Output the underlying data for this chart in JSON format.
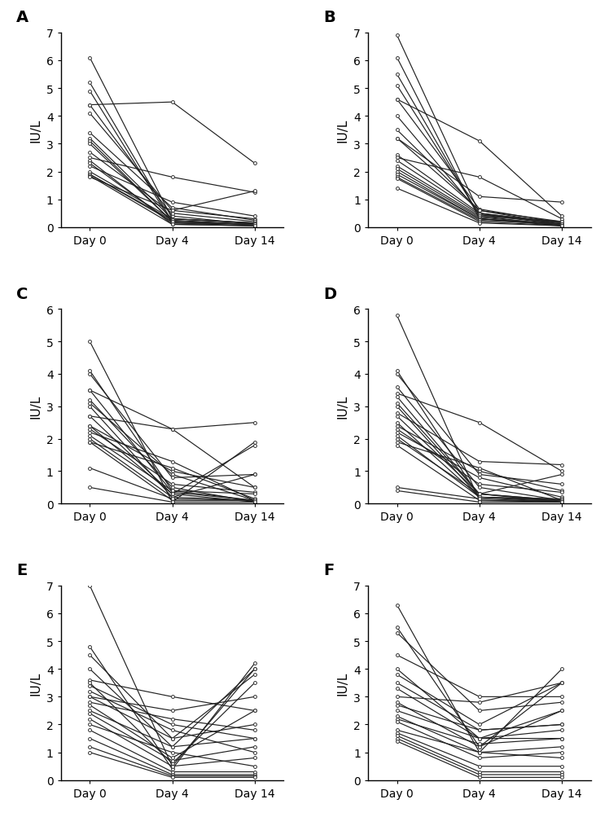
{
  "panels": [
    "A",
    "B",
    "C",
    "D",
    "E",
    "F"
  ],
  "xlabel": [
    "Day 0",
    "Day 4",
    "Day 14"
  ],
  "ylabel": "IU/L",
  "panel_A": {
    "ylim": [
      0,
      7
    ],
    "yticks": [
      0,
      1,
      2,
      3,
      4,
      5,
      6,
      7
    ],
    "series": [
      [
        6.1,
        0.3,
        0.15
      ],
      [
        5.2,
        0.2,
        0.1
      ],
      [
        4.9,
        0.15,
        0.05
      ],
      [
        4.4,
        4.5,
        2.3
      ],
      [
        4.4,
        0.4,
        0.1
      ],
      [
        4.1,
        0.6,
        0.3
      ],
      [
        3.4,
        0.7,
        0.25
      ],
      [
        3.2,
        0.3,
        0.15
      ],
      [
        3.1,
        0.2,
        0.1
      ],
      [
        3.0,
        0.2,
        0.1
      ],
      [
        2.7,
        0.5,
        0.2
      ],
      [
        2.5,
        1.8,
        1.25
      ],
      [
        2.4,
        0.1,
        0.05
      ],
      [
        2.3,
        0.15,
        0.1
      ],
      [
        2.2,
        0.9,
        0.4
      ],
      [
        2.0,
        0.3,
        0.15
      ],
      [
        1.9,
        0.25,
        0.1
      ],
      [
        1.9,
        0.2,
        0.1
      ],
      [
        1.85,
        0.1,
        0.05
      ],
      [
        1.8,
        0.6,
        1.3
      ]
    ]
  },
  "panel_B": {
    "ylim": [
      0,
      7
    ],
    "yticks": [
      0,
      1,
      2,
      3,
      4,
      5,
      6,
      7
    ],
    "series": [
      [
        6.9,
        0.5,
        0.15
      ],
      [
        6.1,
        0.3,
        0.1
      ],
      [
        5.5,
        0.4,
        0.2
      ],
      [
        5.1,
        0.45,
        0.1
      ],
      [
        4.6,
        3.1,
        0.4
      ],
      [
        4.6,
        0.65,
        0.15
      ],
      [
        4.0,
        0.5,
        0.15
      ],
      [
        3.5,
        0.6,
        0.2
      ],
      [
        3.2,
        0.6,
        0.1
      ],
      [
        3.2,
        1.1,
        0.9
      ],
      [
        2.6,
        0.5,
        0.1
      ],
      [
        2.5,
        1.8,
        0.3
      ],
      [
        2.4,
        0.45,
        0.2
      ],
      [
        2.2,
        0.4,
        0.05
      ],
      [
        2.1,
        0.35,
        0.1
      ],
      [
        2.0,
        0.3,
        0.1
      ],
      [
        1.9,
        0.3,
        0.05
      ],
      [
        1.8,
        0.25,
        0.1
      ],
      [
        1.75,
        0.2,
        0.05
      ],
      [
        1.4,
        0.15,
        0.05
      ]
    ]
  },
  "panel_C": {
    "ylim": [
      0,
      6
    ],
    "yticks": [
      0,
      1,
      2,
      3,
      4,
      5,
      6
    ],
    "series": [
      [
        5.0,
        0.05,
        1.9
      ],
      [
        4.1,
        0.4,
        0.1
      ],
      [
        4.0,
        0.8,
        0.9
      ],
      [
        3.5,
        0.35,
        0.1
      ],
      [
        3.5,
        2.3,
        0.5
      ],
      [
        3.2,
        0.5,
        0.05
      ],
      [
        3.1,
        0.9,
        0.1
      ],
      [
        3.0,
        0.2,
        0.1
      ],
      [
        2.7,
        0.3,
        0.05
      ],
      [
        2.7,
        2.3,
        2.5
      ],
      [
        2.4,
        1.0,
        0.5
      ],
      [
        2.4,
        0.3,
        1.8
      ],
      [
        2.3,
        0.6,
        0.35
      ],
      [
        2.2,
        1.3,
        0.1
      ],
      [
        2.1,
        0.4,
        0.3
      ],
      [
        2.0,
        0.2,
        0.9
      ],
      [
        1.9,
        1.1,
        0.15
      ],
      [
        1.9,
        0.1,
        0.1
      ],
      [
        1.1,
        0.15,
        0.1
      ],
      [
        0.5,
        0.05,
        0.05
      ]
    ]
  },
  "panel_D": {
    "ylim": [
      0,
      6
    ],
    "yticks": [
      0,
      1,
      2,
      3,
      4,
      5,
      6
    ],
    "series": [
      [
        5.8,
        0.1,
        0.05
      ],
      [
        4.1,
        0.2,
        0.1
      ],
      [
        4.0,
        0.9,
        0.6
      ],
      [
        3.6,
        0.5,
        0.1
      ],
      [
        3.4,
        2.5,
        1.0
      ],
      [
        3.3,
        0.3,
        0.1
      ],
      [
        3.1,
        0.3,
        0.1
      ],
      [
        3.0,
        0.2,
        0.1
      ],
      [
        2.8,
        1.3,
        1.2
      ],
      [
        2.7,
        0.3,
        0.05
      ],
      [
        2.5,
        0.2,
        0.05
      ],
      [
        2.4,
        1.0,
        0.4
      ],
      [
        2.3,
        0.6,
        0.35
      ],
      [
        2.2,
        0.8,
        0.2
      ],
      [
        2.1,
        0.2,
        0.15
      ],
      [
        2.0,
        0.3,
        0.9
      ],
      [
        1.9,
        1.1,
        0.1
      ],
      [
        1.8,
        0.1,
        0.1
      ],
      [
        0.5,
        0.15,
        0.05
      ],
      [
        0.4,
        0.05,
        0.05
      ]
    ]
  },
  "panel_E": {
    "ylim": [
      0,
      7
    ],
    "yticks": [
      0,
      1,
      2,
      3,
      4,
      5,
      6,
      7
    ],
    "series": [
      [
        7.0,
        0.5,
        4.0
      ],
      [
        4.8,
        0.4,
        4.2
      ],
      [
        4.5,
        1.5,
        3.8
      ],
      [
        4.0,
        1.2,
        4.0
      ],
      [
        3.6,
        3.0,
        2.5
      ],
      [
        3.5,
        0.6,
        3.5
      ],
      [
        3.4,
        2.0,
        1.5
      ],
      [
        3.2,
        1.8,
        1.0
      ],
      [
        3.0,
        2.5,
        3.0
      ],
      [
        3.0,
        1.5,
        2.0
      ],
      [
        2.8,
        2.2,
        1.8
      ],
      [
        2.7,
        0.8,
        2.5
      ],
      [
        2.5,
        1.2,
        1.5
      ],
      [
        2.4,
        0.7,
        1.2
      ],
      [
        2.2,
        0.5,
        0.8
      ],
      [
        2.0,
        1.0,
        0.5
      ],
      [
        1.8,
        0.3,
        0.3
      ],
      [
        1.5,
        0.2,
        0.2
      ],
      [
        1.2,
        0.15,
        0.15
      ],
      [
        1.0,
        0.1,
        0.1
      ]
    ]
  },
  "panel_F": {
    "ylim": [
      0,
      7
    ],
    "yticks": [
      0,
      1,
      2,
      3,
      4,
      5,
      6,
      7
    ],
    "series": [
      [
        6.3,
        1.0,
        4.0
      ],
      [
        5.5,
        1.2,
        3.5
      ],
      [
        5.3,
        2.5,
        2.8
      ],
      [
        4.5,
        3.0,
        3.0
      ],
      [
        4.0,
        1.5,
        2.5
      ],
      [
        3.8,
        2.0,
        3.5
      ],
      [
        3.5,
        1.8,
        2.0
      ],
      [
        3.3,
        1.5,
        1.5
      ],
      [
        3.0,
        2.8,
        3.5
      ],
      [
        2.8,
        1.2,
        2.5
      ],
      [
        2.7,
        1.8,
        2.0
      ],
      [
        2.5,
        1.5,
        1.8
      ],
      [
        2.3,
        1.0,
        1.2
      ],
      [
        2.2,
        1.3,
        1.5
      ],
      [
        2.1,
        0.8,
        1.0
      ],
      [
        1.8,
        1.0,
        0.8
      ],
      [
        1.7,
        0.5,
        0.5
      ],
      [
        1.6,
        0.3,
        0.3
      ],
      [
        1.5,
        0.2,
        0.2
      ],
      [
        1.4,
        0.1,
        0.1
      ]
    ]
  }
}
